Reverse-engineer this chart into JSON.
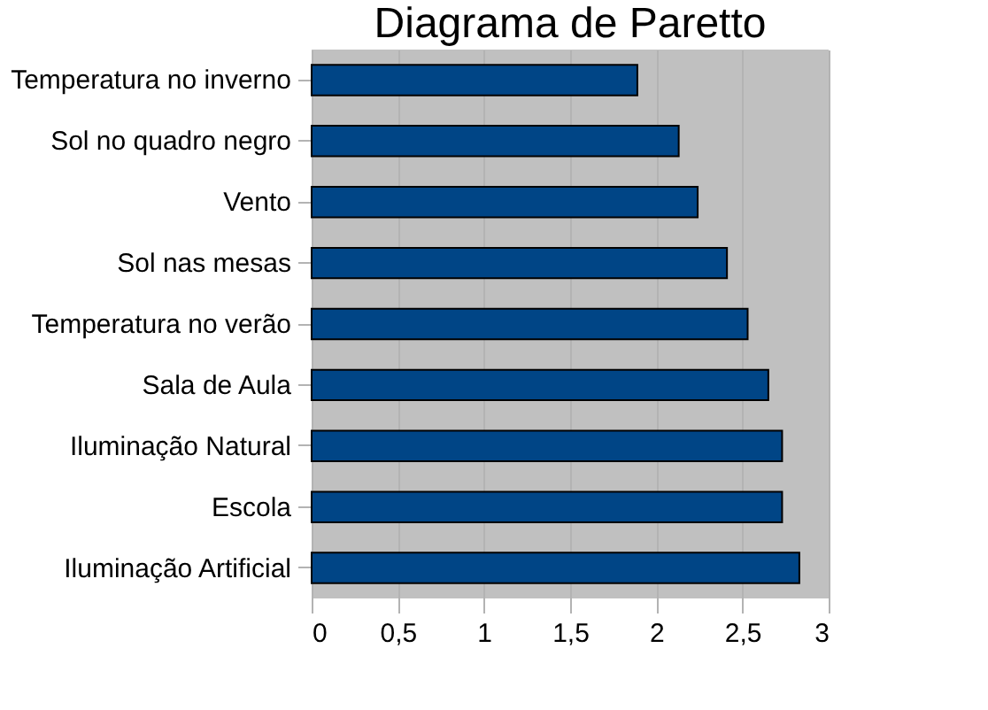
{
  "chart_data": {
    "type": "bar",
    "orientation": "horizontal",
    "title": "Diagrama de Paretto",
    "categories": [
      "Temperatura no inverno",
      "Sol no quadro negro",
      "Vento",
      "Sol nas mesas",
      "Temperatura no verão",
      "Sala de Aula",
      "Iluminação Natural",
      "Escola",
      "Iluminação Artificial"
    ],
    "values": [
      1.89,
      2.13,
      2.24,
      2.41,
      2.53,
      2.65,
      2.73,
      2.73,
      2.83
    ],
    "color": "#004586",
    "xlim": [
      0,
      3
    ],
    "xticks": [
      0,
      {
        "value": 0.5,
        "label": "0,5"
      },
      1,
      {
        "value": 1.5,
        "label": "1,5"
      },
      2,
      {
        "value": 2.5,
        "label": "2,5"
      },
      3
    ],
    "grid": "x"
  }
}
